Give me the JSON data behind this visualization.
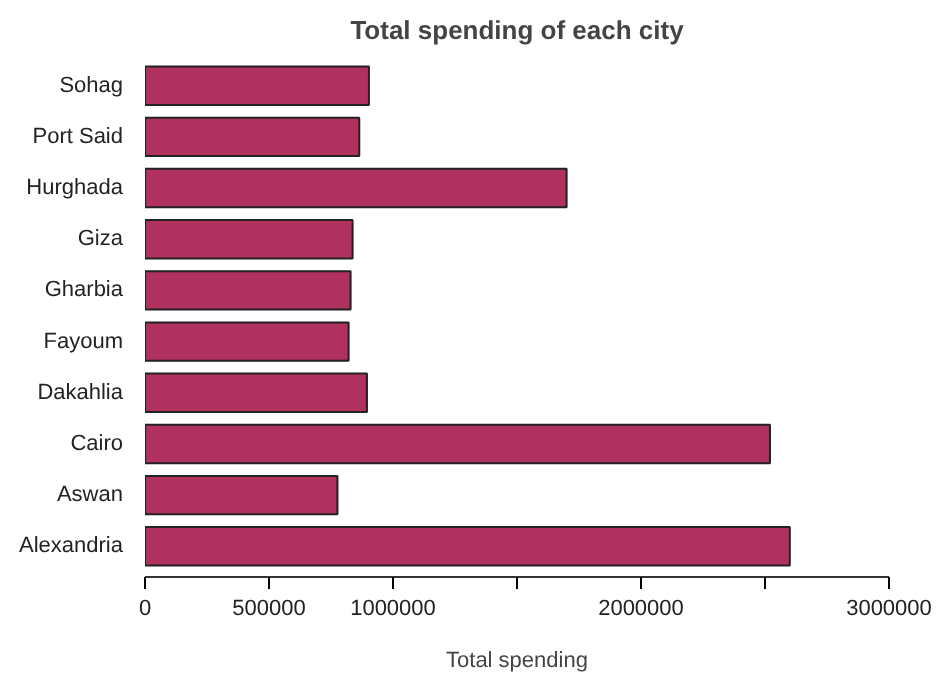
{
  "chart_data": {
    "type": "bar",
    "orientation": "horizontal",
    "title": "Total spending of each city",
    "xlabel": "Total spending",
    "categories": [
      "Sohag",
      "Port Said",
      "Hurghada",
      "Giza",
      "Gharbia",
      "Fayoum",
      "Dakahlia",
      "Cairo",
      "Aswan",
      "Alexandria"
    ],
    "values": [
      903000,
      864000,
      1700000,
      837000,
      829000,
      821000,
      895000,
      2520000,
      776000,
      2600000
    ],
    "color": "#b03060",
    "xlim": [
      0,
      3000000
    ],
    "xticks": [
      0,
      500000,
      1000000,
      {
        "value": 1500000,
        "label": null
      },
      2000000,
      {
        "value": 2500000,
        "label": null
      },
      3000000
    ],
    "grid": false
  }
}
